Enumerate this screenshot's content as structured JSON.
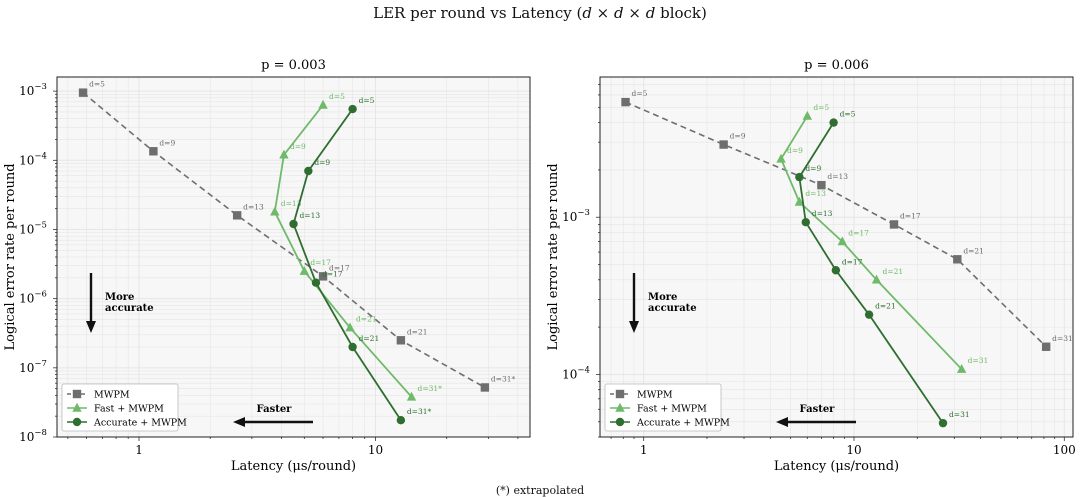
{
  "figure": {
    "title_prefix": "LER per round vs Latency (",
    "title_math": "d × d × d",
    "title_suffix": " block)",
    "footnote": "(*) extrapolated"
  },
  "colors": {
    "mwpm": "#6e6e6e",
    "fast": "#6fba6a",
    "accurate": "#2f6e30",
    "grid": "#e6e6e6",
    "bg": "#f7f7f7"
  },
  "chart_data": [
    {
      "type": "line",
      "title": "p = 0.003",
      "xlabel": "Latency (μs/round)",
      "ylabel": "Logical error rate per round",
      "xscale": "log",
      "yscale": "log",
      "xlim": [
        0.45,
        45
      ],
      "ylim": [
        1e-08,
        0.0016
      ],
      "x_ticks": [
        {
          "value": 1,
          "label": "1"
        },
        {
          "value": 10,
          "label": "10"
        }
      ],
      "y_ticks": [
        {
          "value": 1e-08,
          "label": "10",
          "exp": "−8"
        },
        {
          "value": 1e-07,
          "label": "10",
          "exp": "−7"
        },
        {
          "value": 1e-06,
          "label": "10",
          "exp": "−6"
        },
        {
          "value": 1e-05,
          "label": "10",
          "exp": "−5"
        },
        {
          "value": 0.0001,
          "label": "10",
          "exp": "−4"
        },
        {
          "value": 0.001,
          "label": "10",
          "exp": "−3"
        }
      ],
      "legend_position": "bottom-left",
      "annotations": {
        "down_arrow_label": "More accurate",
        "left_arrow_label": "Faster"
      },
      "series": [
        {
          "name": "MWPM",
          "style": "dashed",
          "marker": "square",
          "x": [
            0.58,
            1.15,
            2.6,
            6.0,
            12.8,
            29.0
          ],
          "y": [
            0.00095,
            0.000135,
            1.6e-05,
            2.1e-06,
            2.5e-07,
            5.2e-08
          ],
          "labels": [
            "d=5",
            "d=9",
            "d=13",
            "d=17",
            "d=21",
            "d=31*"
          ]
        },
        {
          "name": "Fast + MWPM",
          "style": "solid",
          "marker": "triangle",
          "x": [
            6.0,
            4.1,
            3.75,
            5.0,
            7.8,
            14.2
          ],
          "y": [
            0.00063,
            0.00012,
            1.8e-05,
            2.5e-06,
            3.8e-07,
            3.8e-08
          ],
          "labels": [
            "d=5",
            "d=9",
            "d=13",
            "d=17",
            "d=21",
            "d=31*"
          ]
        },
        {
          "name": "Accurate + MWPM",
          "style": "solid",
          "marker": "circle",
          "x": [
            8.0,
            5.2,
            4.5,
            5.6,
            8.0,
            12.8
          ],
          "y": [
            0.00055,
            7e-05,
            1.2e-05,
            1.7e-06,
            2e-07,
            1.75e-08
          ],
          "labels": [
            "d=5",
            "d=9",
            "d=13",
            "d=17",
            "d=21",
            "d=31*"
          ]
        }
      ]
    },
    {
      "type": "line",
      "title": "p = 0.006",
      "xlabel": "Latency (μs/round)",
      "ylabel": "Logical error rate per round",
      "xscale": "log",
      "yscale": "log",
      "xlim": [
        0.62,
        110
      ],
      "ylim": [
        4e-05,
        0.0078
      ],
      "x_ticks": [
        {
          "value": 1,
          "label": "1"
        },
        {
          "value": 10,
          "label": "10"
        },
        {
          "value": 100,
          "label": "100"
        }
      ],
      "y_ticks": [
        {
          "value": 0.0001,
          "label": "10",
          "exp": "−4"
        },
        {
          "value": 0.001,
          "label": "10",
          "exp": "−3"
        }
      ],
      "legend_position": "bottom-left",
      "annotations": {
        "down_arrow_label": "More accurate",
        "left_arrow_label": "Faster"
      },
      "series": [
        {
          "name": "MWPM",
          "style": "dashed",
          "marker": "square",
          "x": [
            0.82,
            2.4,
            7.0,
            15.5,
            31.0,
            82.0
          ],
          "y": [
            0.0054,
            0.0029,
            0.0016,
            0.0009,
            0.00054,
            0.00015
          ],
          "labels": [
            "d=5",
            "d=9",
            "d=13",
            "d=17",
            "d=21",
            "d=31"
          ]
        },
        {
          "name": "Fast + MWPM",
          "style": "solid",
          "marker": "triangle",
          "x": [
            6.0,
            4.5,
            5.5,
            8.8,
            12.8,
            32.5
          ],
          "y": [
            0.0044,
            0.00235,
            0.00125,
            0.0007,
            0.0004,
            0.000108
          ],
          "labels": [
            "d=5",
            "d=9",
            "d=13",
            "d=17",
            "d=21",
            "d=31"
          ]
        },
        {
          "name": "Accurate + MWPM",
          "style": "solid",
          "marker": "circle",
          "x": [
            8.0,
            5.5,
            5.9,
            8.2,
            11.8,
            26.5
          ],
          "y": [
            0.004,
            0.0018,
            0.00093,
            0.00046,
            0.00024,
            4.9e-05
          ],
          "labels": [
            "d=5",
            "d=9",
            "d=13",
            "d=17",
            "d=21",
            "d=31"
          ]
        }
      ]
    }
  ]
}
